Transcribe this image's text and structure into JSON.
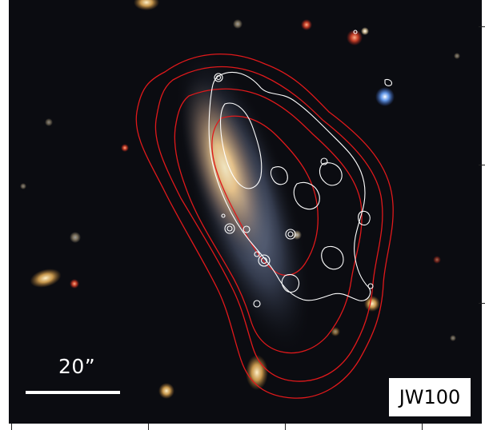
{
  "image": {
    "scale_bar_label": "20”",
    "galaxy_label": "JW100",
    "contour_colors": {
      "outer": "#e0191b",
      "inner": "#ffffff"
    }
  }
}
